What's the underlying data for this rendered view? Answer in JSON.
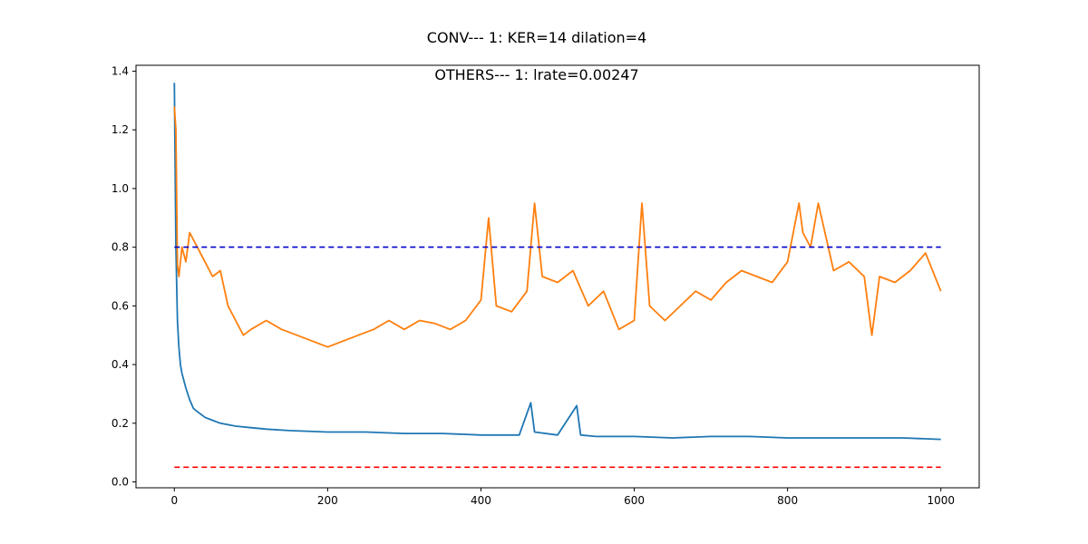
{
  "chart_data": {
    "type": "line",
    "suptitle": "CONV--- 1: KER=14   dilation=4",
    "title": "OTHERS--- 1: lrate=0.00247",
    "xlabel": "",
    "ylabel": "",
    "xlim": [
      -50,
      1050
    ],
    "ylim": [
      -0.02,
      1.42
    ],
    "x_ticks": [
      0,
      200,
      400,
      600,
      800,
      1000
    ],
    "y_ticks": [
      0.0,
      0.2,
      0.4,
      0.6,
      0.8,
      1.0,
      1.2,
      1.4
    ],
    "grid": false,
    "series": [
      {
        "color": "#1f77b4",
        "style": "solid",
        "x": [
          0,
          2,
          4,
          6,
          8,
          10,
          15,
          20,
          25,
          30,
          40,
          50,
          60,
          80,
          100,
          120,
          150,
          200,
          250,
          300,
          350,
          400,
          450,
          465,
          470,
          500,
          525,
          530,
          550,
          600,
          650,
          700,
          750,
          800,
          850,
          900,
          950,
          1000
        ],
        "y": [
          1.36,
          0.8,
          0.55,
          0.46,
          0.4,
          0.37,
          0.32,
          0.28,
          0.25,
          0.24,
          0.22,
          0.21,
          0.2,
          0.19,
          0.185,
          0.18,
          0.175,
          0.17,
          0.17,
          0.165,
          0.165,
          0.16,
          0.16,
          0.27,
          0.17,
          0.16,
          0.26,
          0.16,
          0.155,
          0.155,
          0.15,
          0.155,
          0.155,
          0.15,
          0.15,
          0.15,
          0.15,
          0.145
        ]
      },
      {
        "color": "#ff7f0e",
        "style": "solid",
        "x": [
          0,
          2,
          4,
          6,
          10,
          15,
          20,
          30,
          40,
          50,
          60,
          70,
          80,
          90,
          100,
          120,
          140,
          160,
          180,
          200,
          220,
          240,
          260,
          280,
          300,
          320,
          340,
          360,
          380,
          400,
          410,
          420,
          440,
          460,
          470,
          480,
          500,
          520,
          540,
          560,
          580,
          600,
          610,
          620,
          640,
          660,
          680,
          700,
          720,
          740,
          760,
          780,
          800,
          815,
          820,
          830,
          840,
          860,
          880,
          900,
          910,
          920,
          940,
          960,
          980,
          1000
        ],
        "y": [
          1.28,
          1.2,
          0.74,
          0.7,
          0.8,
          0.75,
          0.85,
          0.8,
          0.75,
          0.7,
          0.72,
          0.6,
          0.55,
          0.5,
          0.52,
          0.55,
          0.52,
          0.5,
          0.48,
          0.46,
          0.48,
          0.5,
          0.52,
          0.55,
          0.52,
          0.55,
          0.54,
          0.52,
          0.55,
          0.62,
          0.9,
          0.6,
          0.58,
          0.65,
          0.95,
          0.7,
          0.68,
          0.72,
          0.6,
          0.65,
          0.52,
          0.55,
          0.95,
          0.6,
          0.55,
          0.6,
          0.65,
          0.62,
          0.68,
          0.72,
          0.7,
          0.68,
          0.75,
          0.95,
          0.85,
          0.8,
          0.95,
          0.72,
          0.75,
          0.7,
          0.5,
          0.7,
          0.68,
          0.72,
          0.78,
          0.65
        ]
      },
      {
        "color": "#0000cd",
        "style": "dashed",
        "x": [
          0,
          1000
        ],
        "y": [
          0.8,
          0.8
        ]
      },
      {
        "color": "#ff0000",
        "style": "dashed",
        "x": [
          0,
          1000
        ],
        "y": [
          0.05,
          0.05
        ]
      }
    ]
  }
}
